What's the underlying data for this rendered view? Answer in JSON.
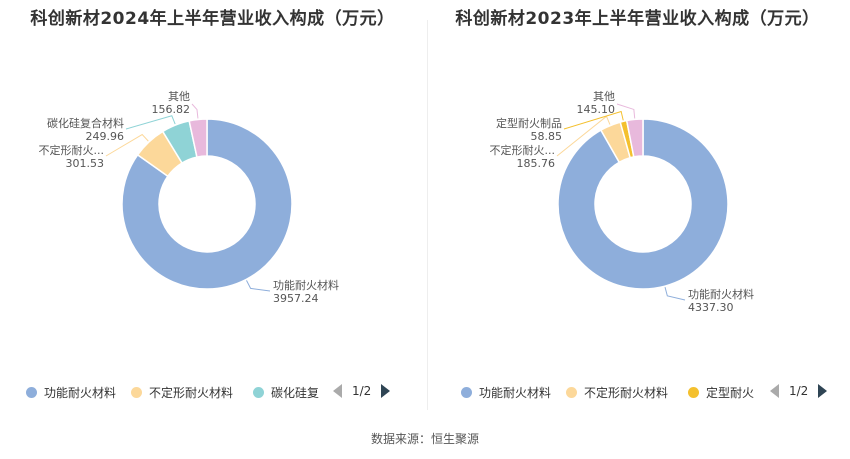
{
  "source": "数据来源：恒生聚源",
  "chart_data": [
    {
      "type": "pie",
      "title": "科创新材2024年上半年营业收入构成（万元）",
      "slices": [
        {
          "name": "功能耐火材料",
          "label": "功能耐火材料",
          "value": 3957.24,
          "value_text": "3957.24",
          "color": "#8eaedb"
        },
        {
          "name": "不定形耐火材料",
          "label": "不定形耐火...",
          "value": 301.53,
          "value_text": "301.53",
          "color": "#fcd89a"
        },
        {
          "name": "碳化硅复合材料",
          "label": "碳化硅复合材料",
          "value": 249.96,
          "value_text": "249.96",
          "color": "#8fd3d6"
        },
        {
          "name": "其他",
          "label": "其他",
          "value": 156.82,
          "value_text": "156.82",
          "color": "#e8b9dc"
        }
      ],
      "legend": {
        "items": [
          "功能耐火材料",
          "不定形耐火材料",
          "碳化硅复"
        ],
        "colors": [
          "#8eaedb",
          "#fcd89a",
          "#8fd3d6"
        ],
        "page": "1/2",
        "placement": "bottom"
      }
    },
    {
      "type": "pie",
      "title": "科创新材2023年上半年营业收入构成（万元）",
      "slices": [
        {
          "name": "功能耐火材料",
          "label": "功能耐火材料",
          "value": 4337.3,
          "value_text": "4337.30",
          "color": "#8eaedb"
        },
        {
          "name": "不定形耐火材料",
          "label": "不定形耐火...",
          "value": 185.76,
          "value_text": "185.76",
          "color": "#fcd89a"
        },
        {
          "name": "定型耐火制品",
          "label": "定型耐火制品",
          "value": 58.85,
          "value_text": "58.85",
          "color": "#f4c02e"
        },
        {
          "name": "其他",
          "label": "其他",
          "value": 145.1,
          "value_text": "145.10",
          "color": "#e8b9dc"
        }
      ],
      "legend": {
        "items": [
          "功能耐火材料",
          "不定形耐火材料",
          "定型耐火"
        ],
        "colors": [
          "#8eaedb",
          "#fcd89a",
          "#f4c02e"
        ],
        "page": "1/2",
        "placement": "bottom"
      }
    }
  ]
}
